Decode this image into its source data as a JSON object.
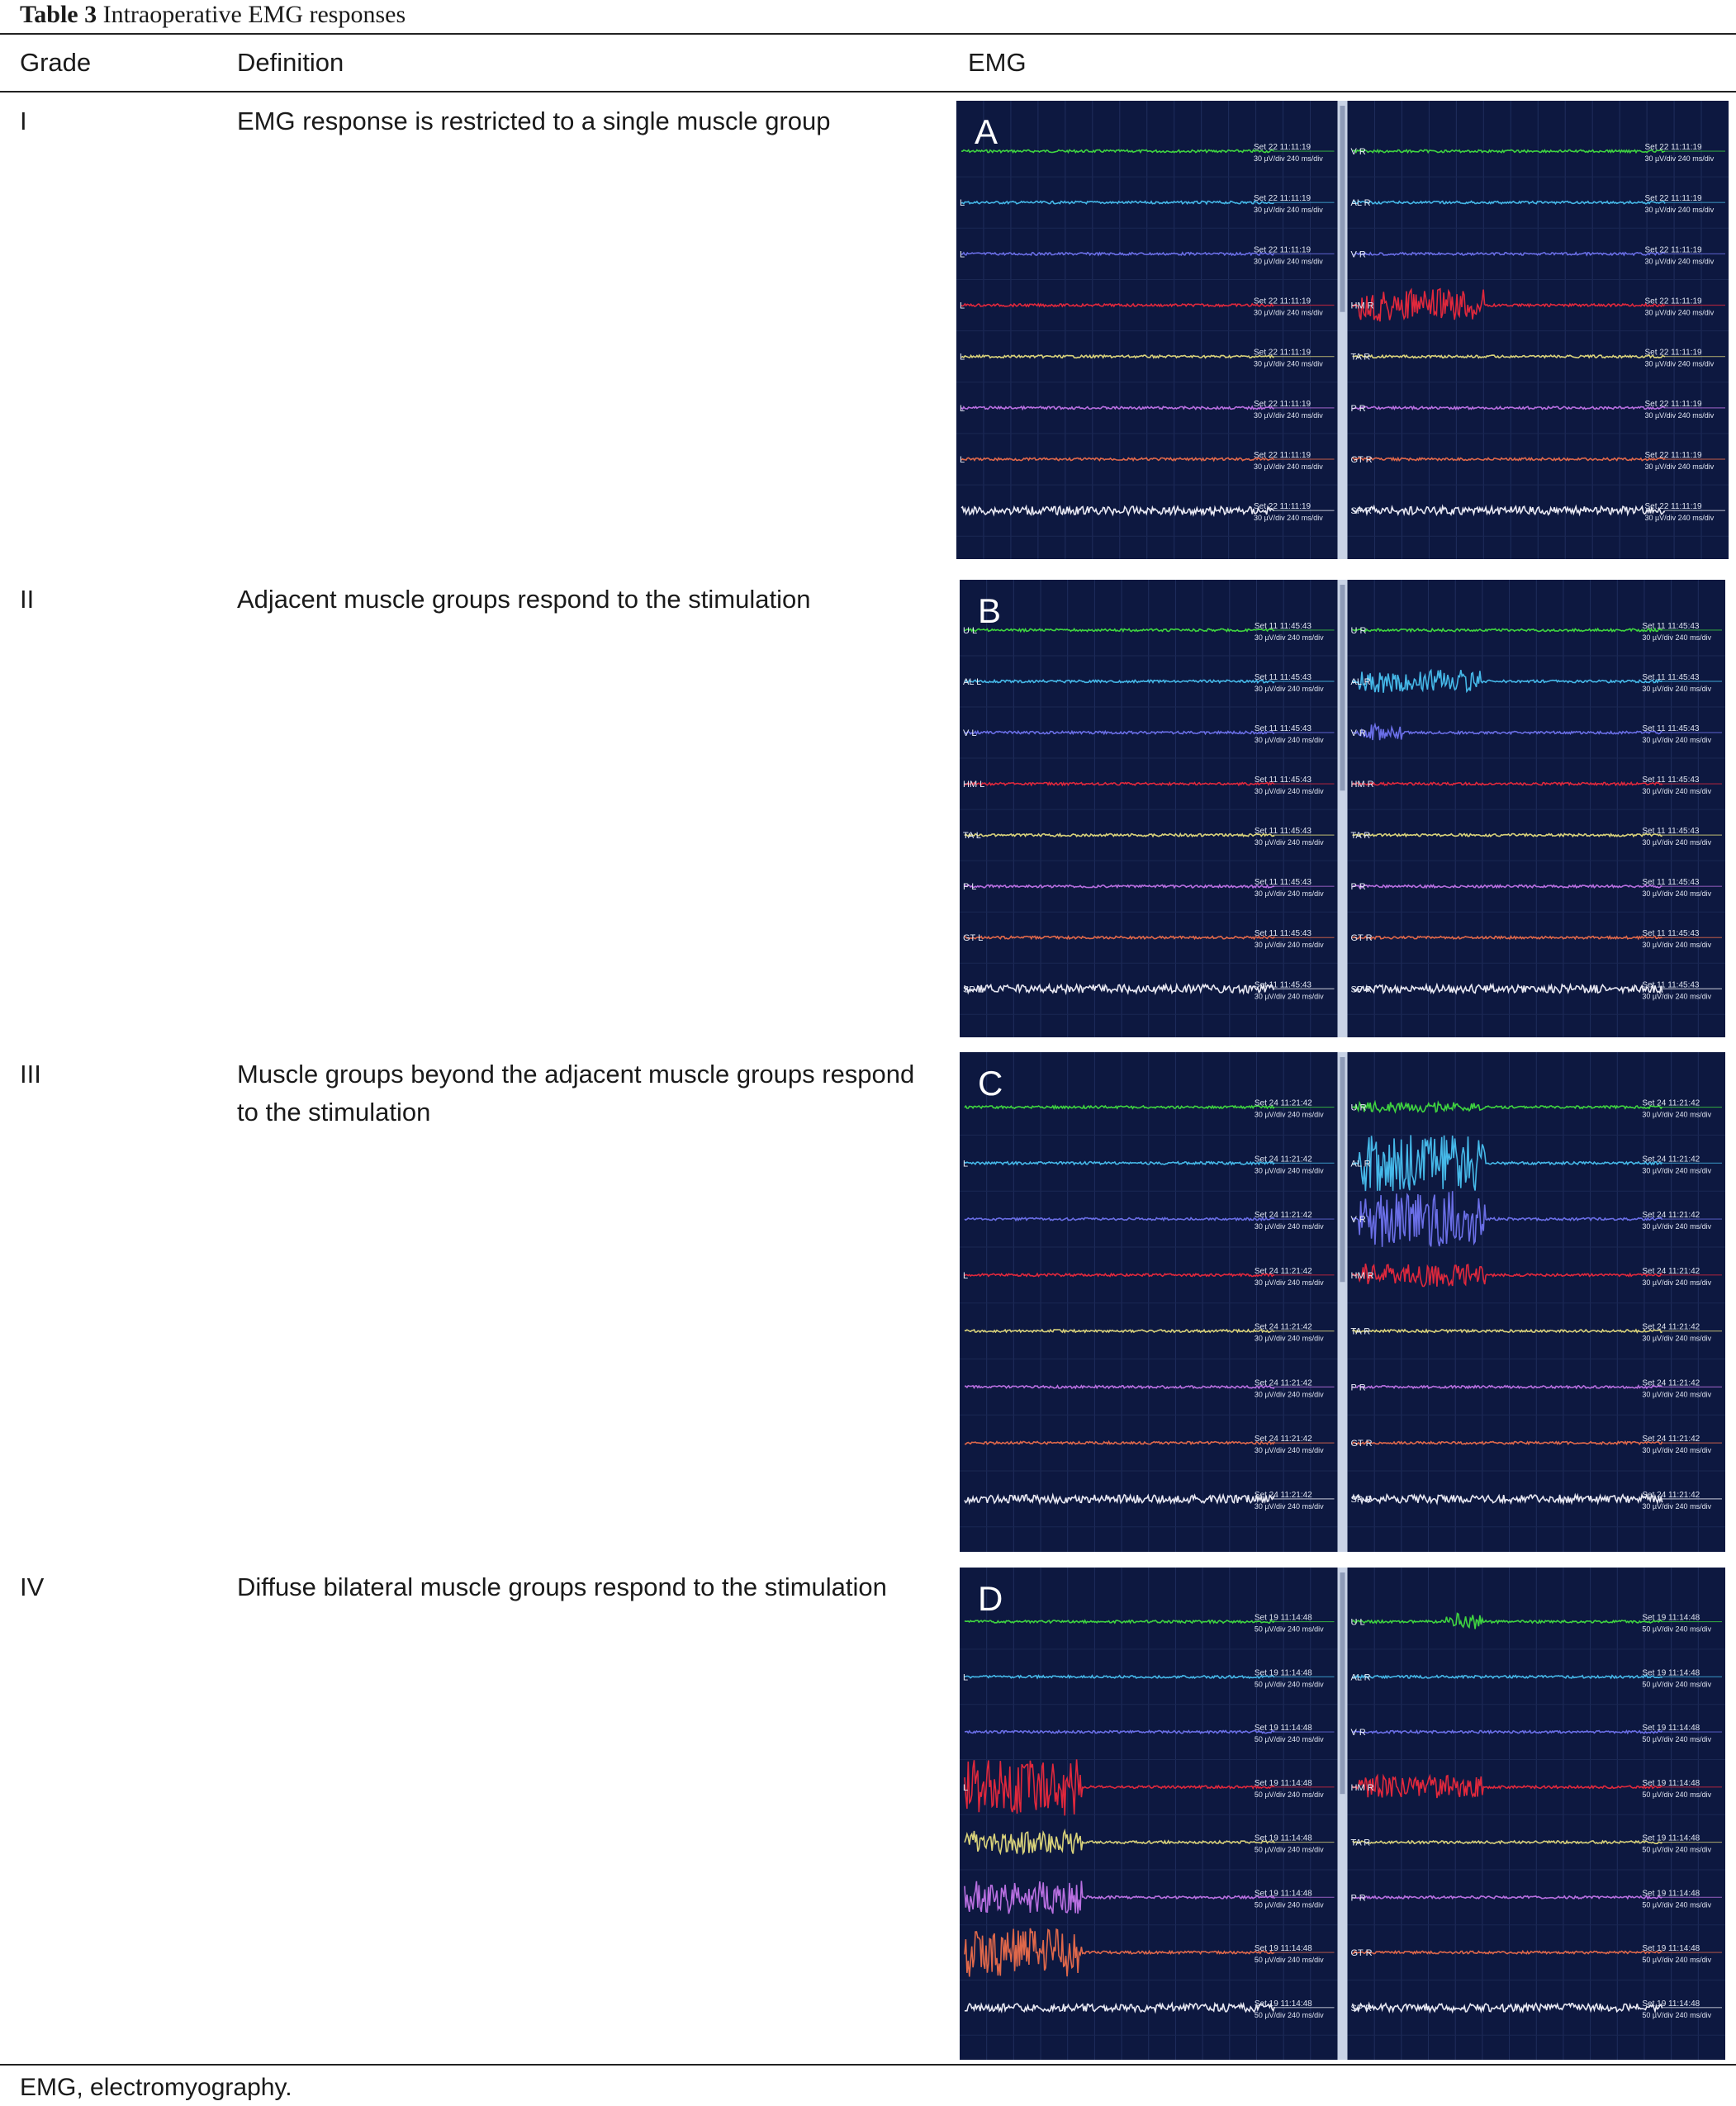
{
  "caption": {
    "label": "Table 3",
    "title": "Intraoperative EMG responses"
  },
  "headers": {
    "grade": "Grade",
    "definition": "Definition",
    "emg": "EMG"
  },
  "rows": [
    {
      "grade": "I",
      "definition": "EMG response is restricted to a single muscle group",
      "panel_letter": "A",
      "left_labels": [
        "",
        "L",
        "L",
        "L",
        "L",
        "L",
        "L",
        ""
      ],
      "right_labels": [
        "V R",
        "AL R",
        "V R",
        "HM R",
        "TA R",
        "P R",
        "GT R",
        "SP R"
      ],
      "stamp": "Set 22 11:11:19",
      "scale": "30 µV/div 240 ms/div"
    },
    {
      "grade": "II",
      "definition": "Adjacent muscle groups respond to the stimulation",
      "panel_letter": "B",
      "left_labels": [
        "U L",
        "AL L",
        "V L",
        "HM L",
        "TA L",
        "P L",
        "GT L",
        "SP L"
      ],
      "right_labels": [
        "U R",
        "AL R",
        "V R",
        "HM R",
        "TA R",
        "P R",
        "GT R",
        "SP R"
      ],
      "stamp": "Set 11 11:45:43",
      "scale": "30 µV/div 240 ms/div"
    },
    {
      "grade": "III",
      "definition": "Muscle groups beyond the adjacent muscle groups respond to the stimulation",
      "panel_letter": "C",
      "left_labels": [
        "",
        "L",
        "",
        "L",
        "",
        "",
        "",
        ""
      ],
      "right_labels": [
        "U R",
        "AL R",
        "V R",
        "HM R",
        "TA R",
        "P R",
        "GT R",
        "SP R"
      ],
      "stamp": "Set 24 11:21:42",
      "scale": "30 µV/div 240 ms/div"
    },
    {
      "grade": "IV",
      "definition": "Diffuse bilateral muscle groups respond to the stimulation",
      "panel_letter": "D",
      "left_labels": [
        "",
        "L",
        "",
        "L",
        "",
        "",
        "",
        ""
      ],
      "right_labels": [
        "U L",
        "AL R",
        "V R",
        "HM R",
        "TA R",
        "P R",
        "GT R",
        "SP R"
      ],
      "stamp": "Set 19 11:14:48",
      "scale": "50 µV/div 240 ms/div"
    }
  ],
  "footnote": "EMG, electromyography.",
  "trace_colors": [
    "#3fd43f",
    "#45b8e8",
    "#6a6ee6",
    "#e0283c",
    "#d9d27a",
    "#b86fe0",
    "#e0684a",
    "#e8e8f2"
  ]
}
